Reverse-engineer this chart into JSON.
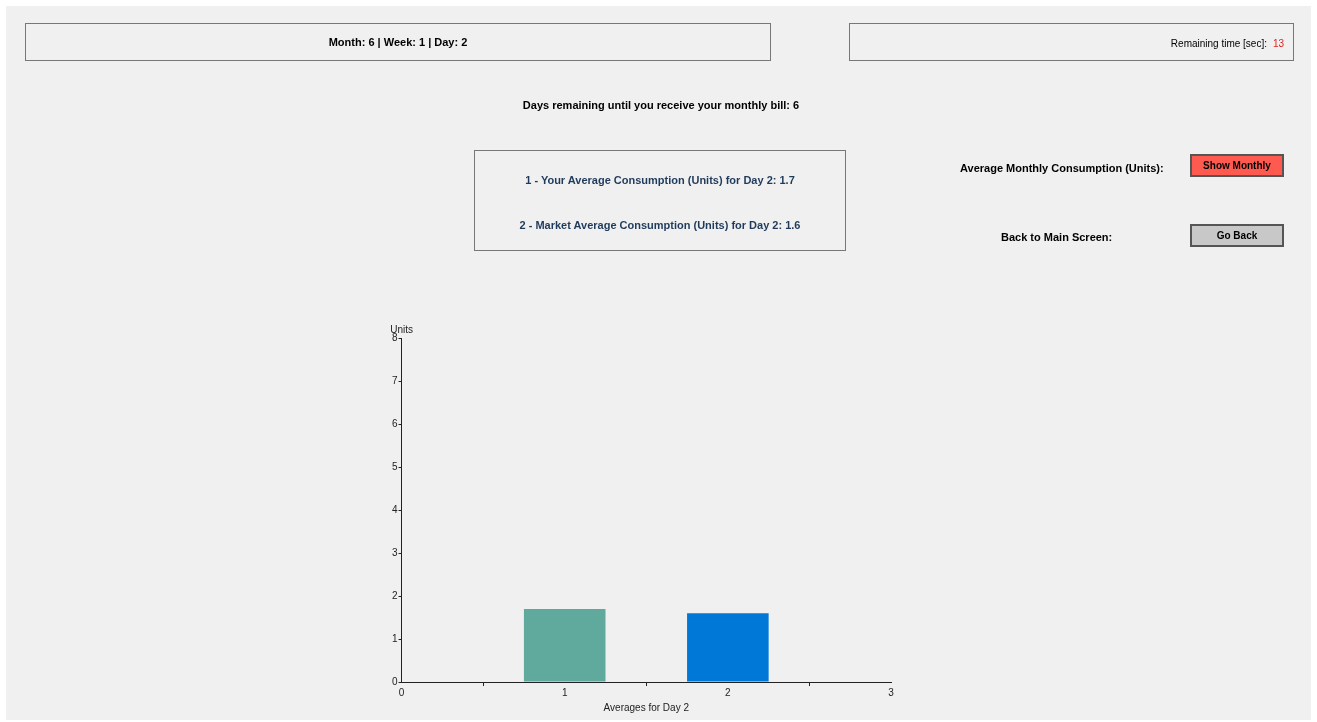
{
  "chart_data": {
    "type": "bar",
    "x": [
      1,
      2
    ],
    "values": [
      1.7,
      1.6
    ],
    "colors": [
      "#5fa99d",
      "#0078d7"
    ],
    "xlim": [
      0,
      3
    ],
    "xticks": [
      0,
      1,
      2,
      3
    ],
    "ylim": [
      0,
      8
    ],
    "yticks": [
      0,
      1,
      2,
      3,
      4,
      5,
      6,
      7,
      8
    ],
    "xlabel": "Averages for Day 2",
    "ylabel": "Units",
    "annotations": [
      "Month: 6 | Week: 1 | Day: 2",
      "Remaining time [sec]:",
      "13",
      "Days remaining until you receive your monthly bill: 6",
      "1 - Your Average Consumption (Units) for Day 2: 1.7",
      "2 - Market Average Consumption (Units) for Day 2: 1.6",
      "Average Monthly Consumption (Units):",
      "Show Monthly",
      "Back to Main Screen:",
      "Go Back"
    ]
  }
}
